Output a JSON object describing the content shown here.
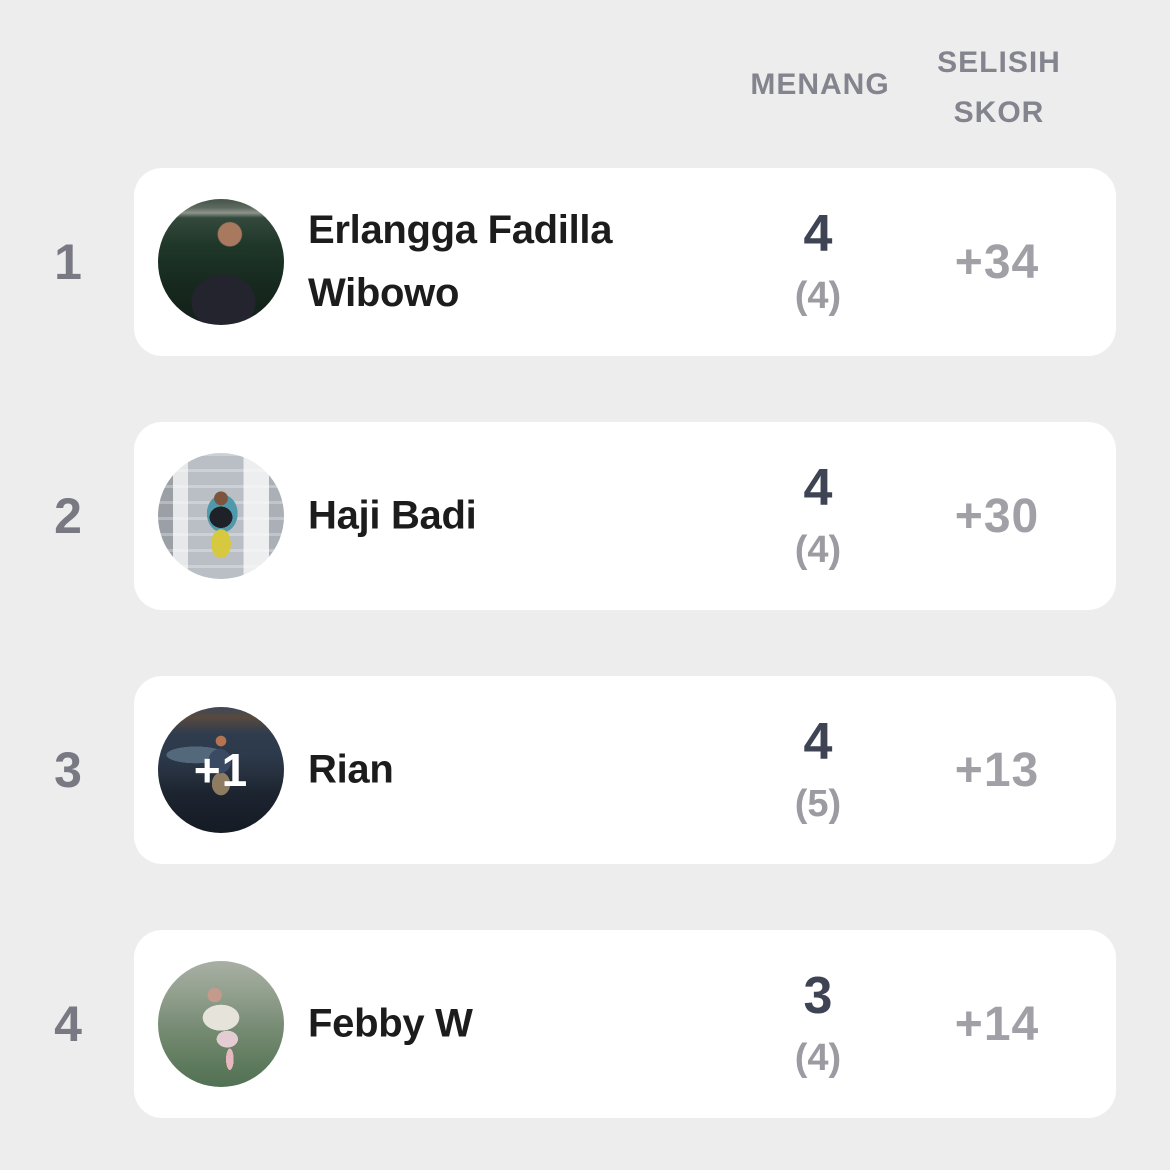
{
  "colors": {
    "bg": "#EDEDED",
    "card": "#FFFFFF",
    "rank": "#797983",
    "header": "#84848E",
    "name": "#1C1C1C",
    "wins": "#3E4453",
    "games": "#9B9BA1",
    "score": "#A0A0A6",
    "overlay": "#FFFFFF"
  },
  "table": {
    "headers": {
      "menang": "MENANG",
      "selisih_line1": "SELISIH",
      "selisih_line2": "SKOR"
    },
    "rows": [
      {
        "rank": "1",
        "name": "Erlangga Fadilla Wibowo",
        "wins": "4",
        "games": "(4)",
        "score_diff": "+34",
        "avatar_overlay": "",
        "avatar_icon": "player-photo-man-green-court",
        "avatar_style": "background: radial-gradient(circle at 57% 28%, #a8795e 0 10%, rgba(168,121,94,0) 11%), radial-gradient(ellipse 42% 36% at 52% 82%, #23242d 0 60%, rgba(35,36,45,0) 61%), linear-gradient(180deg, #44524a 0%, #5d6a5f 7%, #8d958b 11%, #33493b 15%, #1e3628 38%, #17291f 68%, #122019 100%)"
      },
      {
        "rank": "2",
        "name": "Haji Badi",
        "wins": "4",
        "games": "(4)",
        "score_diff": "+30",
        "avatar_overlay": "",
        "avatar_icon": "player-photo-kid-garage",
        "avatar_style": "background: radial-gradient(circle at 50% 36%, #7d543e 0 6.5%, rgba(125,84,62,0) 7%), radial-gradient(ellipse 15% 14% at 50% 51%, #1e2127 0 60%, rgba(30,33,39,0) 61%), radial-gradient(ellipse 13% 19% at 50% 72%, #d6c83f 0 60%, rgba(214,200,63,0) 61%), radial-gradient(ellipse 22% 27% at 51% 48%, #4f99aa 0 55%, rgba(79,153,170,0) 56%), repeating-linear-gradient(180deg, rgba(255,255,255,0.28) 0 3px, rgba(255,255,255,0) 3px 16px), linear-gradient(90deg, #9aa0a6 0 12%, #e6e8ea 12% 24%, #b9bfc5 24% 68%, #eceeef 68% 88%, #aab0b6 88% 100%)"
      },
      {
        "rank": "3",
        "name": "Rian",
        "wins": "4",
        "games": "(5)",
        "score_diff": "+13",
        "avatar_overlay": "+1",
        "avatar_icon": "player-photo-mountain-dusk",
        "avatar_style": "background: radial-gradient(circle at 50% 27%, #b57350 0 4.5%, rgba(181,115,80,0) 5%), radial-gradient(ellipse 15% 16% at 49% 43%, #3a4a63 0 60%, rgba(58,74,99,0) 61%), radial-gradient(ellipse 12% 15% at 50% 61%, #8d7b62 0 60%, rgba(141,123,98,0) 61%), radial-gradient(ellipse 42% 12% at 30% 38%, #54687c 0 55%, rgba(84,104,124,0) 56%), linear-gradient(180deg, #3f4858 0%, #57493f 8%, #2e3c4e 22%, #2c3a4c 38%, #27313f 52%, #1c2430 68%, #151b24 100%)"
      },
      {
        "rank": "4",
        "name": "Febby W",
        "wins": "3",
        "games": "(4)",
        "score_diff": "+14",
        "avatar_overlay": "",
        "avatar_icon": "player-photo-grass-field",
        "avatar_style": "background: radial-gradient(circle at 45% 27%, #c49a8c 0 6%, rgba(196,154,140,0) 6.5%), radial-gradient(ellipse 24% 17% at 50% 45%, #e6e3da 0 60%, rgba(230,227,218,0) 61%), radial-gradient(ellipse 14% 11% at 55% 62%, #e3cdd2 0 60%, rgba(227,205,210,0) 61%), radial-gradient(ellipse 5% 14% at 57% 78%, #e8b8c0 0 60%, rgba(232,184,192,0) 61%), linear-gradient(180deg, #a8b0a4 0%, #909e8c 28%, #758a72 55%, #607c5f 80%, #527055 100%)"
      }
    ]
  }
}
